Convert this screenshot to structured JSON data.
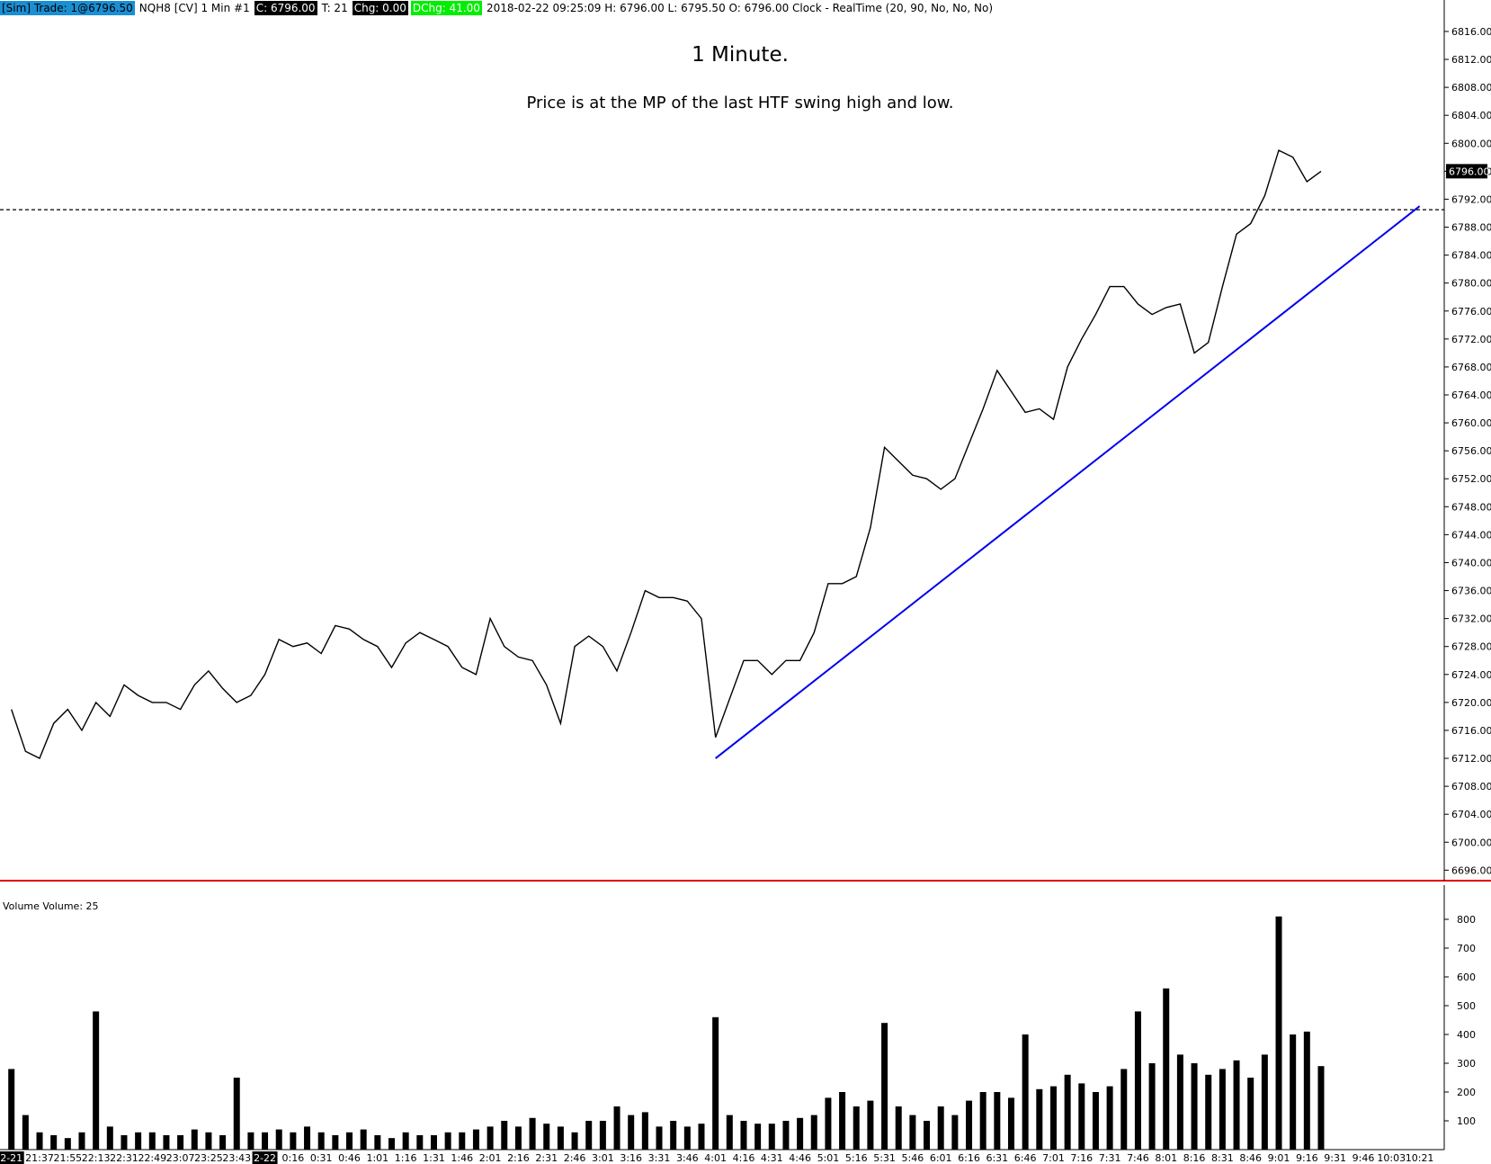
{
  "header": {
    "sim_trade": "[Sim]  Trade: 1@6796.50",
    "instrument": "NQH8 [CV]  1 Min  #1",
    "close": "C: 6796.00",
    "ticks": "T: 21",
    "chg": "Chg: 0.00",
    "dchg": "DChg: 41.00",
    "info": "2018-02-22 09:25:09 H: 6796.00 L: 6795.50 O: 6796.00 Clock - RealTime  (20, 90, No, No, No)"
  },
  "chart_data": [
    {
      "type": "line",
      "title": "1 Minute.",
      "subtitle": "Price is at the MP of the last  HTF swing high and low.",
      "color": "#000000",
      "categories": [
        "2-21",
        null,
        "21:37",
        null,
        "21:55",
        null,
        "22:13",
        null,
        "22:31",
        null,
        "22:49",
        null,
        "23:07",
        null,
        "23:25",
        null,
        "23:43",
        null,
        "2-22",
        null,
        "0:16",
        null,
        "0:31",
        null,
        "0:46",
        null,
        "1:01",
        null,
        "1:16",
        null,
        "1:31",
        null,
        "1:46",
        null,
        "2:01",
        null,
        "2:16",
        null,
        "2:31",
        null,
        "2:46",
        null,
        "3:01",
        null,
        "3:16",
        null,
        "3:31",
        null,
        "3:46",
        null,
        "4:01",
        null,
        "4:16",
        null,
        "4:31",
        null,
        "4:46",
        null,
        "5:01",
        null,
        "5:16",
        null,
        "5:31",
        null,
        "5:46",
        null,
        "6:01",
        null,
        "6:16",
        null,
        "6:31",
        null,
        "6:46",
        null,
        "7:01",
        null,
        "7:16",
        null,
        "7:31",
        null,
        "7:46",
        null,
        "8:01",
        null,
        "8:16",
        null,
        "8:31",
        null,
        "8:46",
        null,
        "9:01",
        null,
        "9:16",
        null,
        "9:31",
        null,
        "9:46",
        null,
        "10:03",
        null,
        "10:21"
      ],
      "values": [
        6719,
        6713,
        6712,
        6717,
        6719,
        6716,
        6720,
        6718,
        6722.5,
        6721,
        6720,
        6720,
        6719,
        6722.5,
        6724.5,
        6722,
        6720,
        6721,
        6724,
        6729,
        6728,
        6728.5,
        6727,
        6731,
        6730.5,
        6729,
        6728,
        6725,
        6728.5,
        6730,
        6729,
        6728,
        6725,
        6724,
        6732,
        6728,
        6726.5,
        6726,
        6722.5,
        6717,
        6728,
        6729.5,
        6728,
        6724.5,
        6730,
        6736,
        6735,
        6735,
        6734.5,
        6732,
        6715,
        6720.5,
        6726,
        6726,
        6724,
        6726,
        6726,
        6730,
        6737,
        6737,
        6738,
        6745,
        6756.5,
        6754.5,
        6752.5,
        6752,
        6750.5,
        6752,
        6757,
        6762,
        6767.5,
        6764.5,
        6761.5,
        6762,
        6760.5,
        6768,
        6772,
        6775.5,
        6779.5,
        6779.5,
        6777,
        6775.5,
        6776.5,
        6777,
        6770,
        6771.5,
        6779.5,
        6787,
        6788.5,
        6792.5,
        6799,
        6798,
        6794.5,
        6796,
        null,
        null,
        null,
        null,
        null,
        null,
        null
      ],
      "ylim": [
        6694.5,
        6820.5
      ],
      "yticks": [
        {
          "value": 6696,
          "label": "6696.00"
        },
        {
          "value": 6700,
          "label": "6700.00"
        },
        {
          "value": 6704,
          "label": "6704.00"
        },
        {
          "value": 6708,
          "label": "6708.00"
        },
        {
          "value": 6712,
          "label": "6712.00"
        },
        {
          "value": 6716,
          "label": "6716.00"
        },
        {
          "value": 6720,
          "label": "6720.00"
        },
        {
          "value": 6724,
          "label": "6724.00"
        },
        {
          "value": 6728,
          "label": "6728.00"
        },
        {
          "value": 6732,
          "label": "6732.00"
        },
        {
          "value": 6736,
          "label": "6736.00"
        },
        {
          "value": 6740,
          "label": "6740.00"
        },
        {
          "value": 6744,
          "label": "6744.00"
        },
        {
          "value": 6748,
          "label": "6748.00"
        },
        {
          "value": 6752,
          "label": "6752.00"
        },
        {
          "value": 6756,
          "label": "6756.00"
        },
        {
          "value": 6760,
          "label": "6760.00"
        },
        {
          "value": 6764,
          "label": "6764.00"
        },
        {
          "value": 6768,
          "label": "6768.00"
        },
        {
          "value": 6772,
          "label": "6772.00"
        },
        {
          "value": 6776,
          "label": "6776.00"
        },
        {
          "value": 6780,
          "label": "6780.00"
        },
        {
          "value": 6784,
          "label": "6784.00"
        },
        {
          "value": 6788,
          "label": "6788.00"
        },
        {
          "value": 6792,
          "label": "6792.00"
        },
        {
          "value": 6796,
          "label": "6796.00"
        },
        {
          "value": 6800,
          "label": "6800.00"
        },
        {
          "value": 6804,
          "label": "6804.00"
        },
        {
          "value": 6808,
          "label": "6808.00"
        },
        {
          "value": 6812,
          "label": "6812.00"
        },
        {
          "value": 6816,
          "label": "6816.00"
        }
      ],
      "last_price": {
        "value": 6796,
        "label": "6796.00"
      },
      "dashed_level": 6790.5,
      "trendline": {
        "x": [
          50,
          100
        ],
        "y": [
          6712,
          6791
        ],
        "color": "#0000ee"
      }
    },
    {
      "type": "bar",
      "title": "Volume  Volume: 25",
      "color": "#000000",
      "values": [
        280,
        120,
        60,
        50,
        40,
        60,
        480,
        80,
        50,
        60,
        60,
        50,
        50,
        70,
        60,
        50,
        250,
        60,
        60,
        70,
        60,
        80,
        60,
        50,
        60,
        70,
        50,
        40,
        60,
        50,
        50,
        60,
        60,
        70,
        80,
        100,
        80,
        110,
        90,
        80,
        60,
        100,
        100,
        150,
        120,
        130,
        80,
        100,
        80,
        90,
        460,
        120,
        100,
        90,
        90,
        100,
        110,
        120,
        180,
        200,
        150,
        170,
        440,
        150,
        120,
        100,
        150,
        120,
        170,
        200,
        200,
        180,
        400,
        210,
        220,
        260,
        230,
        200,
        220,
        280,
        480,
        300,
        560,
        330,
        300,
        260,
        280,
        310,
        250,
        330,
        810,
        400,
        410,
        290,
        null,
        null,
        null,
        null,
        null,
        null,
        null
      ],
      "ylim": [
        0,
        900
      ],
      "yticks": [
        100,
        200,
        300,
        400,
        500,
        600,
        700,
        800
      ]
    }
  ]
}
